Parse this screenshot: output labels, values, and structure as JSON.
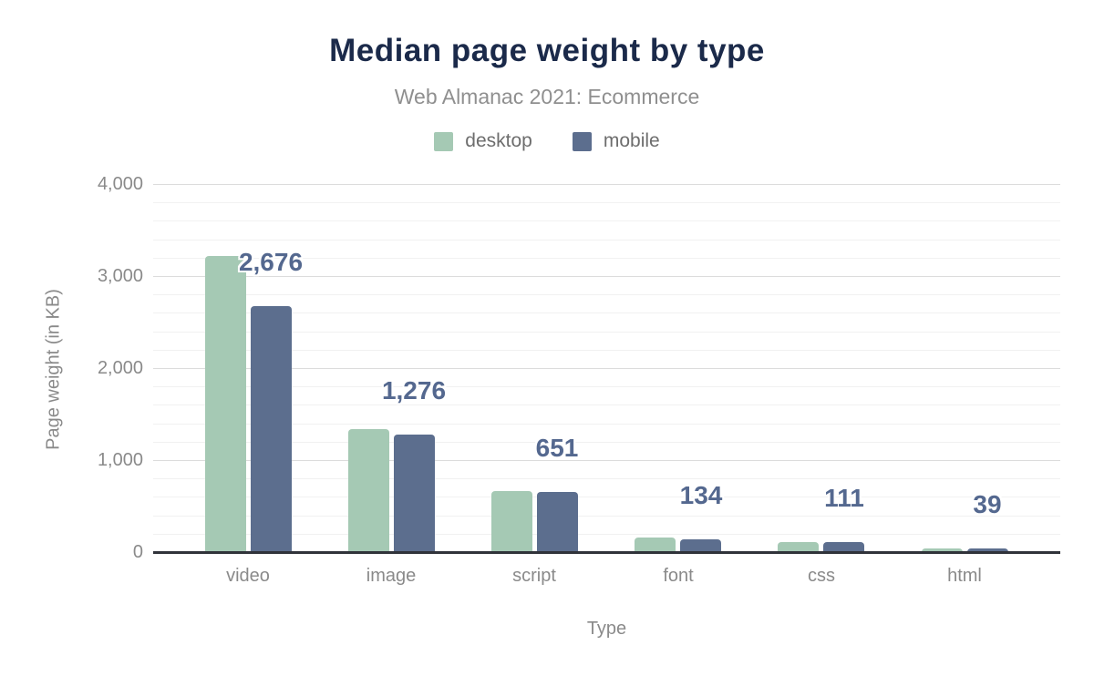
{
  "header": {
    "title": "Median page weight by type",
    "subtitle": "Web Almanac 2021: Ecommerce"
  },
  "chart_data": {
    "type": "bar",
    "title": "Median page weight by type",
    "subtitle": "Web Almanac 2021: Ecommerce",
    "xlabel": "Type",
    "ylabel": "Page weight (in KB)",
    "categories": [
      "video",
      "image",
      "script",
      "font",
      "css",
      "html"
    ],
    "series": [
      {
        "name": "desktop",
        "color": "#a5c9b4",
        "values": [
          3220,
          1340,
          665,
          155,
          110,
          44
        ],
        "values_note": "estimated from bar heights; not labeled on chart"
      },
      {
        "name": "mobile",
        "color": "#5c6e8e",
        "values": [
          2676,
          1276,
          651,
          134,
          111,
          39
        ],
        "data_labels": [
          "2,676",
          "1,276",
          "651",
          "134",
          "111",
          "39"
        ]
      }
    ],
    "ylim": [
      0,
      4000
    ],
    "yticks": [
      {
        "value": 0,
        "label": "0"
      },
      {
        "value": 1000,
        "label": "1,000"
      },
      {
        "value": 2000,
        "label": "2,000"
      },
      {
        "value": 3000,
        "label": "3,000"
      },
      {
        "value": 4000,
        "label": "4,000"
      }
    ],
    "minor_grid_step": 200,
    "grid": "horizontal only",
    "legend_position": "top-center",
    "colors": {
      "title": "#1b2a4a",
      "subtitle": "#8f8f8f",
      "axis_text": "#8a8a8a",
      "value_label": "#54688f",
      "axis_line": "#30333a",
      "major_grid": "#dcdcdc",
      "minor_grid": "#f1f1f1"
    }
  }
}
